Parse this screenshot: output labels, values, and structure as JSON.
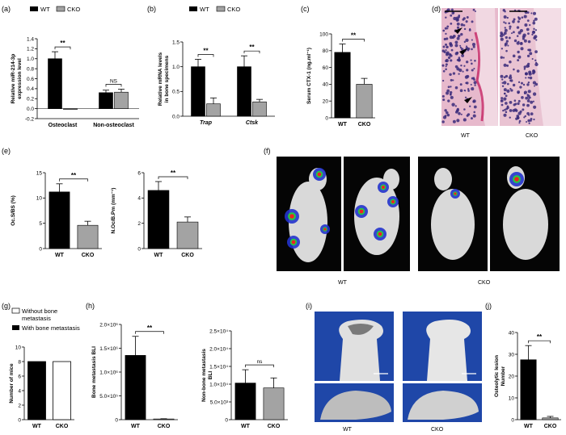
{
  "panel_labels": [
    "(a)",
    "(b)",
    "(c)",
    "(d)",
    "(e)",
    "(f)",
    "(g)",
    "(h)",
    "(i)",
    "(j)"
  ],
  "legend": {
    "wt": "WT",
    "cko": "CKO",
    "without": "Without bone metastasis",
    "with": "With bone metastasis"
  },
  "image_captions": {
    "d_wt": "WT",
    "d_cko": "CKO",
    "f_wt": "WT",
    "f_cko": "CKO",
    "i_wt": "WT",
    "i_cko": "CKO"
  },
  "colors": {
    "wt": "#000000",
    "cko": "#a3a3a3",
    "without": "#ffffff",
    "with": "#000000",
    "ct_bg": "#1f47a8",
    "he_pink": "#e7b9cc"
  },
  "chart_data": [
    {
      "id": "a",
      "type": "bar",
      "ylabel": "Relative miR-214-3p expression level",
      "ylim": [
        -0.2,
        1.4
      ],
      "yticks": [
        "-0.2",
        "0.0",
        "0.2",
        "0.4",
        "0.6",
        "0.8",
        "1.0",
        "1.2",
        "1.4"
      ],
      "categories": [
        "Osteoclast",
        "Non-osteoclast"
      ],
      "series": [
        {
          "name": "WT",
          "values": [
            1.0,
            0.32
          ],
          "errors": [
            0.14,
            0.05
          ]
        },
        {
          "name": "CKO",
          "values": [
            0.0,
            0.33
          ],
          "errors": [
            0.0,
            0.06
          ]
        }
      ],
      "significance": [
        {
          "group": 0,
          "label": "**"
        },
        {
          "group": 1,
          "label": "NS"
        }
      ]
    },
    {
      "id": "b",
      "type": "bar",
      "ylabel": "Relative mRNA levels in bone specimens",
      "ylim": [
        0.0,
        1.5
      ],
      "yticks": [
        "0.0",
        "0.5",
        "1.0",
        "1.5"
      ],
      "categories": [
        "Trap",
        "Ctsk"
      ],
      "series": [
        {
          "name": "WT",
          "values": [
            1.0,
            1.0
          ],
          "errors": [
            0.15,
            0.22
          ]
        },
        {
          "name": "CKO",
          "values": [
            0.25,
            0.29
          ],
          "errors": [
            0.12,
            0.05
          ]
        }
      ],
      "significance": [
        {
          "group": 0,
          "label": "**"
        },
        {
          "group": 1,
          "label": "**"
        }
      ]
    },
    {
      "id": "c",
      "type": "bar",
      "ylabel": "Serum CTX-1 (ng.ml⁻¹)",
      "ylim": [
        0,
        100
      ],
      "yticks": [
        "0",
        "20",
        "40",
        "60",
        "80",
        "100"
      ],
      "categories": [
        "WT",
        "CKO"
      ],
      "values": [
        78,
        40
      ],
      "errors": [
        10,
        7
      ],
      "significance": [
        {
          "label": "**"
        }
      ]
    },
    {
      "id": "e1",
      "type": "bar",
      "ylabel": "Oc.S/BS (%)",
      "ylim": [
        0,
        15
      ],
      "yticks": [
        "0",
        "5",
        "10",
        "15"
      ],
      "categories": [
        "WT",
        "CKO"
      ],
      "values": [
        11.2,
        4.6
      ],
      "errors": [
        1.6,
        0.8
      ],
      "significance": [
        {
          "label": "**"
        }
      ]
    },
    {
      "id": "e2",
      "type": "bar",
      "ylabel": "N.Oc/B.Pm (mm⁻¹)",
      "ylim": [
        0,
        6
      ],
      "yticks": [
        "0",
        "2",
        "4",
        "6"
      ],
      "categories": [
        "WT",
        "CKO"
      ],
      "values": [
        4.6,
        2.1
      ],
      "errors": [
        0.7,
        0.4
      ],
      "significance": [
        {
          "label": "**"
        }
      ]
    },
    {
      "id": "g",
      "type": "bar",
      "ylabel": "Number of mice",
      "ylim": [
        0,
        10
      ],
      "yticks": [
        "0",
        "2",
        "4",
        "6",
        "8",
        "10"
      ],
      "categories": [
        "WT",
        "CKO"
      ],
      "values": [
        8,
        8
      ],
      "series": [
        {
          "name": "With bone metastasis"
        },
        {
          "name": "Without bone metastasis"
        }
      ]
    },
    {
      "id": "h1",
      "type": "bar",
      "ylabel": "Bone metastasis BLI",
      "ylim": [
        0,
        2000000
      ],
      "yticks": [
        "0",
        "5.0×10⁵",
        "1.0×10⁶",
        "1.5×10⁶",
        "2.0×10⁶"
      ],
      "categories": [
        "WT",
        "CKO"
      ],
      "values": [
        1350000,
        15000
      ],
      "errors": [
        400000,
        5000
      ],
      "significance": [
        {
          "label": "**"
        }
      ]
    },
    {
      "id": "h2",
      "type": "bar",
      "ylabel": "Non-bone metastasis BLI",
      "ylim": [
        0,
        40000
      ],
      "yticks": [
        "0",
        "5.0×10³",
        "1.0×10⁴",
        "1.5×10⁴",
        "2.0×10⁴",
        "2.5×10⁴"
      ],
      "categories": [
        "WT",
        "CKO"
      ],
      "values": [
        16500,
        14300
      ],
      "errors": [
        6000,
        4500
      ],
      "significance": [
        {
          "label": "ns"
        }
      ]
    },
    {
      "id": "j",
      "type": "bar",
      "ylabel": "Osteolytic lesion Number",
      "ylim": [
        0,
        40
      ],
      "yticks": [
        "0",
        "10",
        "20",
        "30",
        "40"
      ],
      "categories": [
        "WT",
        "CKO"
      ],
      "values": [
        27.5,
        0.8
      ],
      "errors": [
        6.5,
        0.7
      ],
      "significance": [
        {
          "label": "**"
        }
      ]
    }
  ]
}
